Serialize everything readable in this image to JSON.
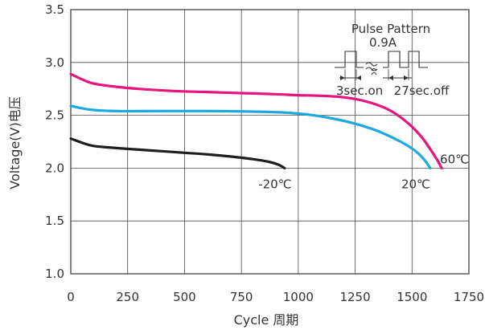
{
  "chart_data": {
    "type": "line",
    "title": "",
    "xlabel": "Cycle 周期",
    "ylabel": "Voltage(V)电压",
    "xlim": [
      0,
      1750
    ],
    "ylim": [
      1.0,
      3.5
    ],
    "x_ticks": [
      "0",
      "250",
      "500",
      "750",
      "1000",
      "1250",
      "1500",
      "1750"
    ],
    "y_ticks": [
      "1.0",
      "1.5",
      "2.0",
      "2.5",
      "3.0",
      "3.5"
    ],
    "grid": true,
    "series": [
      {
        "name": "60℃",
        "color": "#e6147d",
        "points": [
          [
            0,
            2.89
          ],
          [
            50,
            2.84
          ],
          [
            100,
            2.8
          ],
          [
            200,
            2.77
          ],
          [
            300,
            2.75
          ],
          [
            450,
            2.73
          ],
          [
            600,
            2.72
          ],
          [
            750,
            2.71
          ],
          [
            900,
            2.7
          ],
          [
            1000,
            2.69
          ],
          [
            1100,
            2.685
          ],
          [
            1200,
            2.67
          ],
          [
            1300,
            2.63
          ],
          [
            1400,
            2.55
          ],
          [
            1480,
            2.43
          ],
          [
            1540,
            2.3
          ],
          [
            1580,
            2.18
          ],
          [
            1610,
            2.08
          ],
          [
            1630,
            2.0
          ]
        ]
      },
      {
        "name": "20℃",
        "color": "#1ea8e0",
        "points": [
          [
            0,
            2.59
          ],
          [
            40,
            2.57
          ],
          [
            100,
            2.55
          ],
          [
            200,
            2.54
          ],
          [
            400,
            2.54
          ],
          [
            600,
            2.54
          ],
          [
            800,
            2.535
          ],
          [
            950,
            2.525
          ],
          [
            1050,
            2.505
          ],
          [
            1150,
            2.47
          ],
          [
            1250,
            2.42
          ],
          [
            1350,
            2.35
          ],
          [
            1450,
            2.25
          ],
          [
            1510,
            2.17
          ],
          [
            1550,
            2.09
          ],
          [
            1580,
            2.0
          ]
        ]
      },
      {
        "name": "-20℃",
        "color": "#1e1e1e",
        "points": [
          [
            0,
            2.28
          ],
          [
            50,
            2.24
          ],
          [
            100,
            2.21
          ],
          [
            200,
            2.19
          ],
          [
            300,
            2.175
          ],
          [
            400,
            2.16
          ],
          [
            500,
            2.145
          ],
          [
            600,
            2.13
          ],
          [
            700,
            2.11
          ],
          [
            800,
            2.085
          ],
          [
            870,
            2.06
          ],
          [
            910,
            2.035
          ],
          [
            940,
            2.0
          ]
        ]
      }
    ],
    "inset": {
      "title": "Pulse  Pattern",
      "current": "0.9A",
      "on_label": "3sec.on",
      "off_label": "27sec.off"
    }
  }
}
